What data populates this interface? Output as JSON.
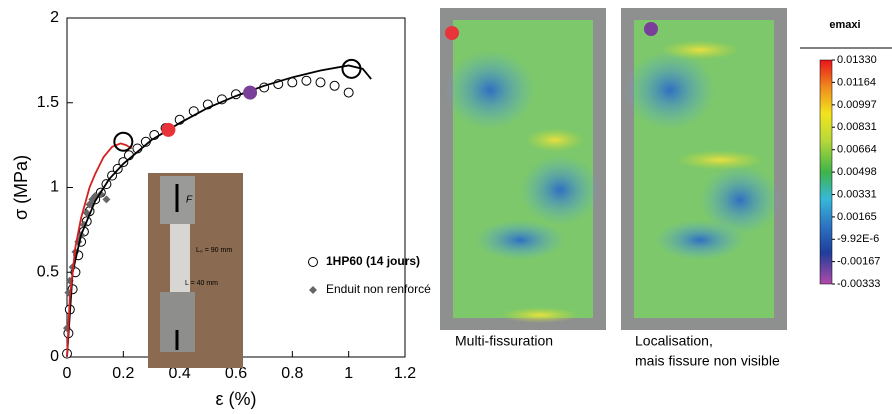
{
  "chart_data": {
    "type": "line",
    "xlabel": "ε (%)",
    "ylabel": "σ (MPa)",
    "xlim": [
      0,
      1.2
    ],
    "ylim": [
      0,
      2
    ],
    "xticks": [
      0,
      0.2,
      0.4,
      0.6,
      0.8,
      1,
      1.2
    ],
    "yticks": [
      0,
      0.5,
      1,
      1.5,
      2
    ],
    "series": [
      {
        "name": "1HP60 (14 jours)",
        "marker": "circle-open",
        "color": "#000000",
        "x": [
          0,
          0.005,
          0.01,
          0.02,
          0.03,
          0.04,
          0.05,
          0.06,
          0.07,
          0.08,
          0.1,
          0.12,
          0.14,
          0.16,
          0.18,
          0.2,
          0.22,
          0.25,
          0.28,
          0.31,
          0.35,
          0.4,
          0.45,
          0.5,
          0.55,
          0.6,
          0.65,
          0.7,
          0.75,
          0.8,
          0.85,
          0.9,
          0.95,
          1.0
        ],
        "values": [
          0.02,
          0.14,
          0.28,
          0.4,
          0.5,
          0.6,
          0.68,
          0.74,
          0.8,
          0.86,
          0.93,
          0.97,
          1.02,
          1.07,
          1.11,
          1.15,
          1.19,
          1.23,
          1.27,
          1.31,
          1.35,
          1.4,
          1.45,
          1.49,
          1.52,
          1.55,
          1.57,
          1.59,
          1.61,
          1.62,
          1.63,
          1.62,
          1.6,
          1.56
        ]
      },
      {
        "name": "Enduit non renforcé",
        "marker": "diamond",
        "color": "#666666",
        "x": [
          0,
          0.005,
          0.01,
          0.02,
          0.03,
          0.04,
          0.05,
          0.06,
          0.07,
          0.08,
          0.09,
          0.1,
          0.12,
          0.14
        ],
        "values": [
          0.17,
          0.38,
          0.45,
          0.53,
          0.62,
          0.68,
          0.72,
          0.78,
          0.85,
          0.9,
          0.93,
          0.95,
          0.96,
          0.93
        ]
      },
      {
        "marker": "line",
        "color": "#000000",
        "x": [
          0,
          0.02,
          0.05,
          0.1,
          0.15,
          0.2,
          0.3,
          0.4,
          0.5,
          0.6,
          0.7,
          0.8,
          0.9,
          1.0,
          1.05,
          1.08
        ],
        "values": [
          0,
          0.5,
          0.72,
          0.92,
          1.05,
          1.14,
          1.28,
          1.38,
          1.47,
          1.54,
          1.6,
          1.65,
          1.69,
          1.72,
          1.7,
          1.64
        ]
      },
      {
        "marker": "line",
        "color": "#d42020",
        "x": [
          0,
          0.01,
          0.03,
          0.05,
          0.08,
          0.1,
          0.13,
          0.16,
          0.19,
          0.21,
          0.23
        ],
        "values": [
          0,
          0.35,
          0.65,
          0.82,
          1.0,
          1.08,
          1.18,
          1.24,
          1.26,
          1.25,
          1.23
        ]
      },
      {
        "marker": "big-circle",
        "color": "#000000",
        "x": [
          0.2,
          1.01
        ],
        "values": [
          1.27,
          1.7
        ]
      },
      {
        "marker": "dot",
        "color": "#e8333a",
        "x": [
          0.36
        ],
        "values": [
          1.34
        ]
      },
      {
        "marker": "dot",
        "color": "#7a3f98",
        "x": [
          0.65
        ],
        "values": [
          1.56
        ]
      }
    ]
  },
  "inset_labels": [
    "F",
    "L₀ = 90 mm",
    "L = 40 mm"
  ],
  "captions": [
    "Multi-fissuration",
    "Localisation,",
    "mais fissure non visible"
  ],
  "colorbar": {
    "title": "emaxi",
    "ticks": [
      {
        "value": 0.0133,
        "label": "0.01330"
      },
      {
        "value": 0.01164,
        "label": "0.01164"
      },
      {
        "value": 0.00997,
        "label": "0.00997"
      },
      {
        "value": 0.00831,
        "label": "0.00831"
      },
      {
        "value": 0.00664,
        "label": "0.00664"
      },
      {
        "value": 0.00498,
        "label": "0.00498"
      },
      {
        "value": 0.00331,
        "label": "0.00331"
      },
      {
        "value": 0.00165,
        "label": "0.00165"
      },
      {
        "value": -9.92e-06,
        "label": "-9.92E-6"
      },
      {
        "value": -0.00167,
        "label": "-0.00167"
      },
      {
        "value": -0.00333,
        "label": "-0.00333"
      }
    ]
  }
}
